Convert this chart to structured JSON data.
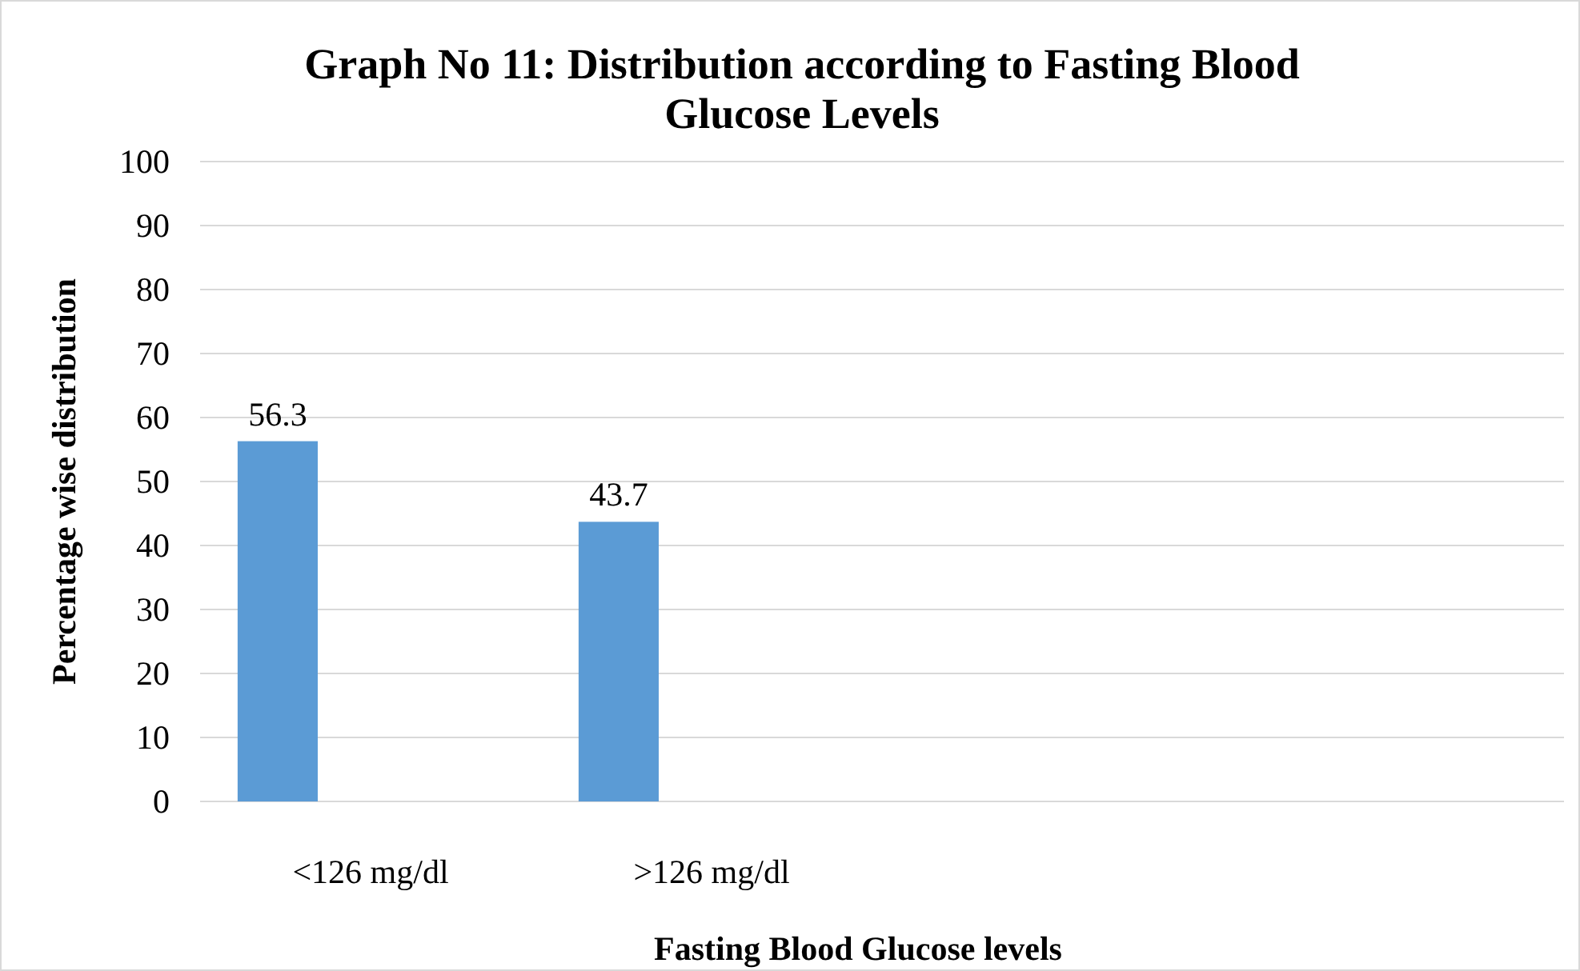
{
  "chart_data": {
    "type": "bar",
    "title": "Graph No 11: Distribution according to Fasting Blood Glucose Levels",
    "xlabel": "Fasting Blood Glucose levels",
    "ylabel": "Percentage wise distribution",
    "categories": [
      "<126 mg/dl",
      ">126 mg/dl",
      null,
      null
    ],
    "values": [
      56.3,
      43.7,
      null,
      null
    ],
    "color": "#5b9bd5",
    "ylim": [
      0,
      100
    ],
    "yticks": [
      0,
      10,
      20,
      30,
      40,
      50,
      60,
      70,
      80,
      90,
      100
    ],
    "grid": "y",
    "data_labels": true
  }
}
